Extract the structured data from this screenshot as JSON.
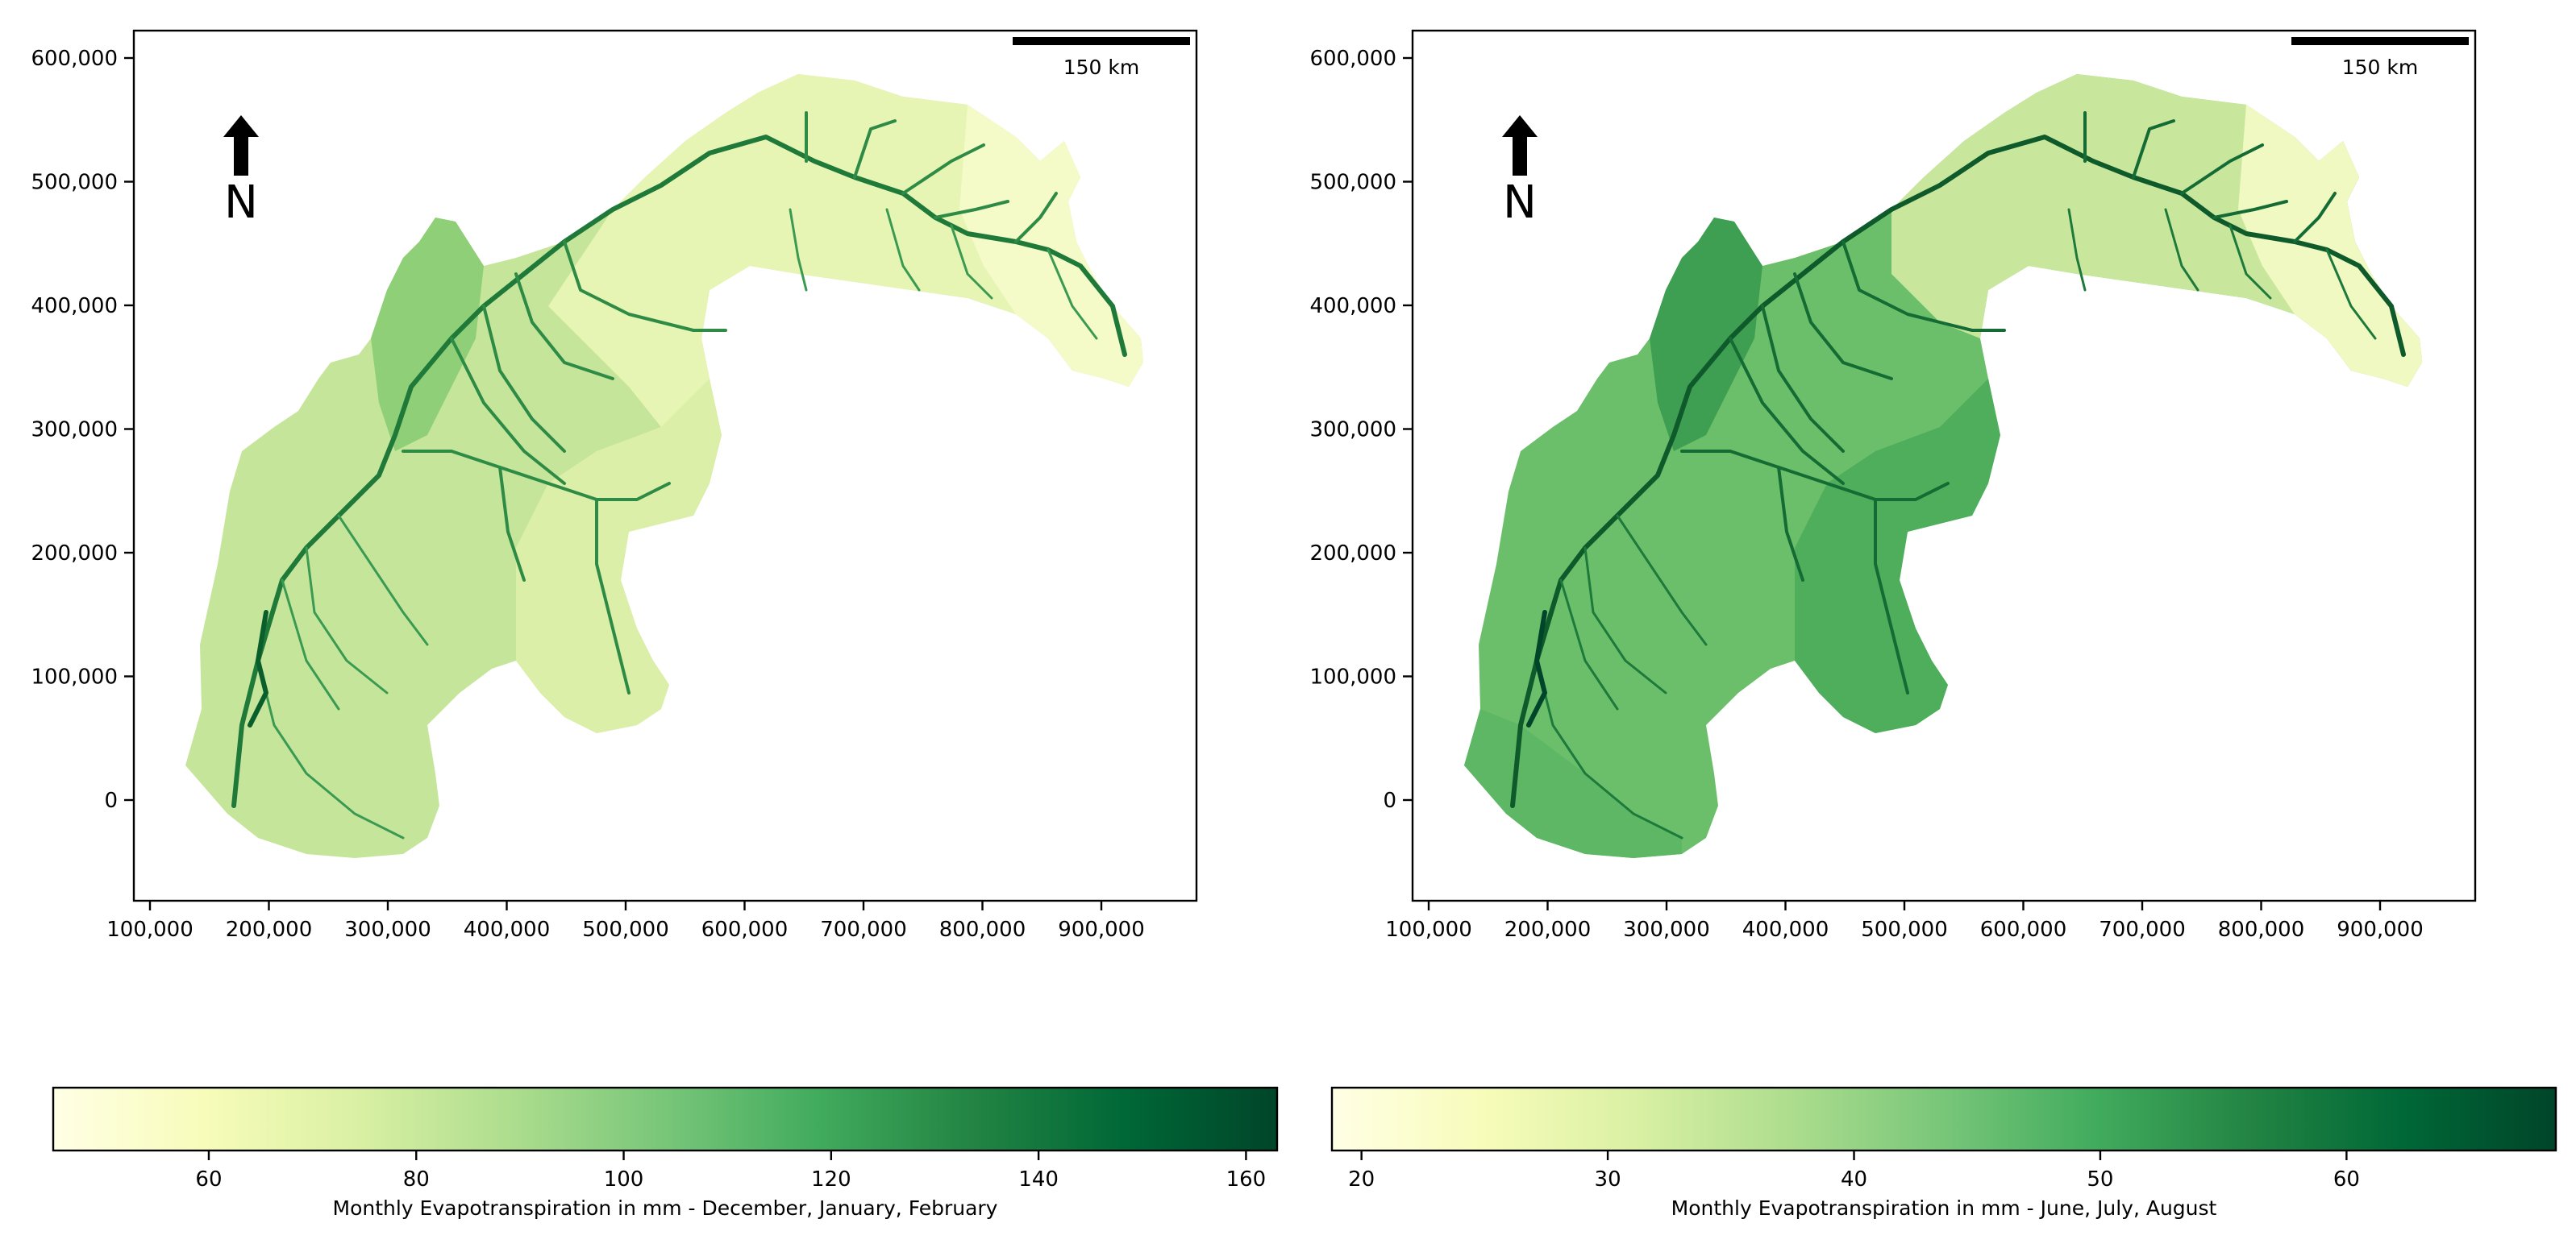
{
  "maps": [
    {
      "id": "winter",
      "x_ticks": [
        "100,000",
        "200,000",
        "300,000",
        "400,000",
        "500,000",
        "600,000",
        "700,000",
        "800,000",
        "900,000"
      ],
      "y_ticks": [
        "600,000",
        "500,000",
        "400,000",
        "300,000",
        "200,000",
        "100,000",
        "0"
      ],
      "scale_bar_label": "150 km",
      "north_label": "N",
      "colorbar": {
        "label": "Monthly Evapotranspiration in mm - December, January, February",
        "ticks": [
          "60",
          "80",
          "100",
          "120",
          "140",
          "160"
        ],
        "colormap": [
          "#ffffe5",
          "#f7fcb9",
          "#d9f0a3",
          "#addd8e",
          "#78c679",
          "#41ab5d",
          "#238443",
          "#006837",
          "#004529"
        ]
      }
    },
    {
      "id": "summer",
      "x_ticks": [
        "100,000",
        "200,000",
        "300,000",
        "400,000",
        "500,000",
        "600,000",
        "700,000",
        "800,000",
        "900,000"
      ],
      "y_ticks": [
        "600,000",
        "500,000",
        "400,000",
        "300,000",
        "200,000",
        "100,000",
        "0"
      ],
      "scale_bar_label": "150 km",
      "north_label": "N",
      "colorbar": {
        "label": "Monthly Evapotranspiration in mm - June, July, August",
        "ticks": [
          "20",
          "30",
          "40",
          "50",
          "60"
        ],
        "colormap": [
          "#ffffe5",
          "#f7fcb9",
          "#d9f0a3",
          "#addd8e",
          "#78c679",
          "#41ab5d",
          "#238443",
          "#006837",
          "#004529"
        ]
      }
    }
  ]
}
